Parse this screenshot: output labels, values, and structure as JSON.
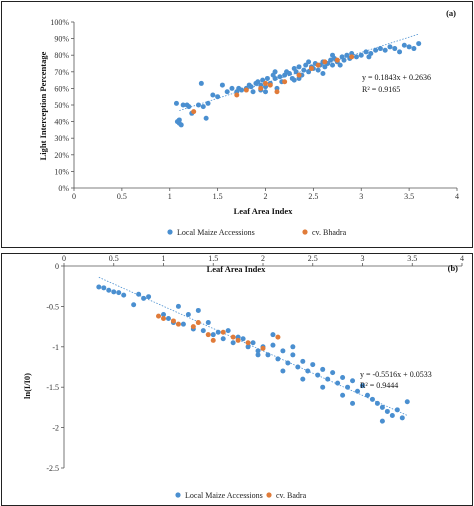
{
  "chart_data": [
    {
      "panel_label": "(a)",
      "type": "scatter",
      "xlabel": "Leaf Area Index",
      "ylabel": "Light Interception Percentage",
      "xlim": [
        0,
        4
      ],
      "ylim": [
        0,
        100
      ],
      "x_ticks": [
        "0",
        "0.5",
        "1",
        "1.5",
        "2",
        "2.5",
        "3",
        "3.5",
        "4"
      ],
      "y_ticks": [
        "0%",
        "10%",
        "20%",
        "30%",
        "40%",
        "50%",
        "60%",
        "70%",
        "80%",
        "90%",
        "100%"
      ],
      "x_axis_position": "bottom",
      "equation": "y = 0.1843x + 0.2636",
      "r2": "R² = 0.9165",
      "trendline": {
        "slope": 18.43,
        "intercept": 26.36,
        "x_range": [
          1.1,
          3.6
        ]
      },
      "legend_position": "bottom",
      "series": [
        {
          "name": "Local Maize Accessions",
          "color": "#4a8fd0",
          "points": [
            [
              1.07,
              51
            ],
            [
              1.08,
              40
            ],
            [
              1.1,
              39
            ],
            [
              1.1,
              41
            ],
            [
              1.12,
              38
            ],
            [
              1.14,
              50
            ],
            [
              1.18,
              50
            ],
            [
              1.2,
              49
            ],
            [
              1.23,
              45
            ],
            [
              1.3,
              50
            ],
            [
              1.33,
              63
            ],
            [
              1.35,
              49
            ],
            [
              1.38,
              42
            ],
            [
              1.4,
              51
            ],
            [
              1.45,
              56
            ],
            [
              1.5,
              55
            ],
            [
              1.55,
              62
            ],
            [
              1.6,
              58
            ],
            [
              1.65,
              60
            ],
            [
              1.7,
              58
            ],
            [
              1.72,
              60
            ],
            [
              1.75,
              59
            ],
            [
              1.8,
              60
            ],
            [
              1.83,
              62
            ],
            [
              1.85,
              61
            ],
            [
              1.87,
              58
            ],
            [
              1.9,
              63
            ],
            [
              1.92,
              64
            ],
            [
              1.95,
              62
            ],
            [
              1.97,
              65
            ],
            [
              2.0,
              61
            ],
            [
              2.02,
              66
            ],
            [
              2.05,
              63
            ],
            [
              2.08,
              68
            ],
            [
              2.1,
              66
            ],
            [
              2.12,
              60
            ],
            [
              2.15,
              67
            ],
            [
              2.17,
              64
            ],
            [
              2.2,
              68
            ],
            [
              2.22,
              70
            ],
            [
              2.25,
              69
            ],
            [
              2.28,
              66
            ],
            [
              2.3,
              72
            ],
            [
              2.32,
              70
            ],
            [
              2.35,
              73
            ],
            [
              2.38,
              68
            ],
            [
              2.4,
              71
            ],
            [
              2.42,
              74
            ],
            [
              2.45,
              70
            ],
            [
              2.48,
              73
            ],
            [
              2.5,
              72
            ],
            [
              2.52,
              75
            ],
            [
              2.55,
              71
            ],
            [
              2.57,
              74
            ],
            [
              2.6,
              76
            ],
            [
              2.62,
              73
            ],
            [
              2.65,
              75
            ],
            [
              2.68,
              77
            ],
            [
              2.7,
              74
            ],
            [
              2.72,
              78
            ],
            [
              2.75,
              76
            ],
            [
              2.78,
              74
            ],
            [
              2.8,
              79
            ],
            [
              2.82,
              77
            ],
            [
              2.85,
              80
            ],
            [
              2.88,
              78
            ],
            [
              2.9,
              81
            ],
            [
              2.95,
              79
            ],
            [
              3.0,
              80
            ],
            [
              3.05,
              82
            ],
            [
              3.1,
              81
            ],
            [
              3.15,
              83
            ],
            [
              3.2,
              84
            ],
            [
              3.25,
              83
            ],
            [
              3.3,
              85
            ],
            [
              3.35,
              84
            ],
            [
              3.4,
              82
            ],
            [
              3.45,
              86
            ],
            [
              3.5,
              85
            ],
            [
              3.55,
              84
            ],
            [
              3.6,
              87
            ],
            [
              2.0,
              58
            ],
            [
              2.3,
              65
            ],
            [
              2.6,
              69
            ],
            [
              2.1,
              70
            ],
            [
              1.95,
              59
            ],
            [
              2.45,
              76
            ],
            [
              2.35,
              66
            ],
            [
              2.7,
              80
            ],
            [
              3.08,
              79
            ]
          ]
        },
        {
          "name": "cv. Bhadra",
          "color": "#e07b39",
          "points": [
            [
              1.25,
              46
            ],
            [
              1.7,
              56
            ],
            [
              1.8,
              59
            ],
            [
              1.95,
              60
            ],
            [
              2.0,
              63
            ],
            [
              2.05,
              62
            ],
            [
              2.12,
              58
            ],
            [
              2.2,
              64
            ],
            [
              2.35,
              68
            ],
            [
              2.48,
              72
            ],
            [
              2.55,
              74
            ],
            [
              2.62,
              76
            ],
            [
              2.75,
              77
            ],
            [
              2.9,
              79
            ]
          ]
        }
      ]
    },
    {
      "panel_label": "(b)",
      "type": "scatter",
      "xlabel": "Leaf Area Index",
      "ylabel": "ln(I/I0)",
      "xlim": [
        0,
        4
      ],
      "ylim": [
        -2.5,
        0
      ],
      "x_ticks": [
        "0",
        "0.5",
        "1",
        "1.5",
        "2",
        "2.5",
        "3",
        "3.5",
        "4"
      ],
      "y_ticks": [
        "0",
        "-0.5",
        "-1",
        "-1.5",
        "-2",
        "-2.5"
      ],
      "x_axis_position": "top",
      "equation": "y = -0.5516x + 0.0533",
      "r2": "R² = 0.9444",
      "trendline": {
        "slope": -0.5516,
        "intercept": 0.0533,
        "x_range": [
          0.35,
          3.45
        ]
      },
      "legend_position": "bottom",
      "series": [
        {
          "name": "Local Maize Accessions",
          "color": "#4a8fd0",
          "points": [
            [
              0.35,
              -0.26
            ],
            [
              0.4,
              -0.27
            ],
            [
              0.45,
              -0.3
            ],
            [
              0.5,
              -0.32
            ],
            [
              0.55,
              -0.33
            ],
            [
              0.6,
              -0.36
            ],
            [
              0.7,
              -0.48
            ],
            [
              0.75,
              -0.35
            ],
            [
              0.8,
              -0.4
            ],
            [
              0.85,
              -0.38
            ],
            [
              1.0,
              -0.6
            ],
            [
              1.05,
              -0.65
            ],
            [
              1.1,
              -0.7
            ],
            [
              1.15,
              -0.5
            ],
            [
              1.2,
              -0.72
            ],
            [
              1.25,
              -0.6
            ],
            [
              1.3,
              -0.78
            ],
            [
              1.35,
              -0.55
            ],
            [
              1.4,
              -0.8
            ],
            [
              1.45,
              -0.7
            ],
            [
              1.5,
              -0.85
            ],
            [
              1.55,
              -0.82
            ],
            [
              1.6,
              -0.9
            ],
            [
              1.65,
              -0.8
            ],
            [
              1.7,
              -0.95
            ],
            [
              1.75,
              -0.88
            ],
            [
              1.8,
              -0.9
            ],
            [
              1.85,
              -1.0
            ],
            [
              1.9,
              -0.95
            ],
            [
              1.95,
              -1.05
            ],
            [
              2.0,
              -1.0
            ],
            [
              2.05,
              -1.1
            ],
            [
              2.1,
              -0.98
            ],
            [
              2.15,
              -1.15
            ],
            [
              2.2,
              -1.05
            ],
            [
              2.25,
              -1.2
            ],
            [
              2.3,
              -1.1
            ],
            [
              2.35,
              -1.25
            ],
            [
              2.4,
              -1.18
            ],
            [
              2.45,
              -1.3
            ],
            [
              2.5,
              -1.22
            ],
            [
              2.55,
              -1.35
            ],
            [
              2.6,
              -1.28
            ],
            [
              2.65,
              -1.4
            ],
            [
              2.7,
              -1.32
            ],
            [
              2.75,
              -1.45
            ],
            [
              2.8,
              -1.38
            ],
            [
              2.85,
              -1.5
            ],
            [
              2.9,
              -1.42
            ],
            [
              2.95,
              -1.55
            ],
            [
              3.0,
              -1.48
            ],
            [
              3.05,
              -1.6
            ],
            [
              3.1,
              -1.65
            ],
            [
              3.15,
              -1.7
            ],
            [
              3.2,
              -1.75
            ],
            [
              3.25,
              -1.8
            ],
            [
              3.3,
              -1.85
            ],
            [
              3.35,
              -1.78
            ],
            [
              3.4,
              -1.88
            ],
            [
              3.45,
              -1.68
            ],
            [
              2.2,
              -1.3
            ],
            [
              2.4,
              -1.4
            ],
            [
              2.6,
              -1.5
            ],
            [
              2.8,
              -1.6
            ],
            [
              1.95,
              -1.1
            ],
            [
              2.1,
              -0.85
            ],
            [
              2.3,
              -1.0
            ],
            [
              3.2,
              -1.92
            ],
            [
              2.9,
              -1.7
            ]
          ]
        },
        {
          "name": "cv. Badra",
          "color": "#e07b39",
          "points": [
            [
              0.95,
              -0.62
            ],
            [
              1.0,
              -0.65
            ],
            [
              1.1,
              -0.68
            ],
            [
              1.15,
              -0.72
            ],
            [
              1.3,
              -0.75
            ],
            [
              1.35,
              -0.7
            ],
            [
              1.45,
              -0.85
            ],
            [
              1.5,
              -0.92
            ],
            [
              1.6,
              -0.82
            ],
            [
              1.7,
              -0.88
            ],
            [
              1.75,
              -0.92
            ],
            [
              1.85,
              -0.95
            ],
            [
              2.15,
              -0.88
            ],
            [
              2.0,
              -1.02
            ]
          ]
        }
      ]
    }
  ]
}
